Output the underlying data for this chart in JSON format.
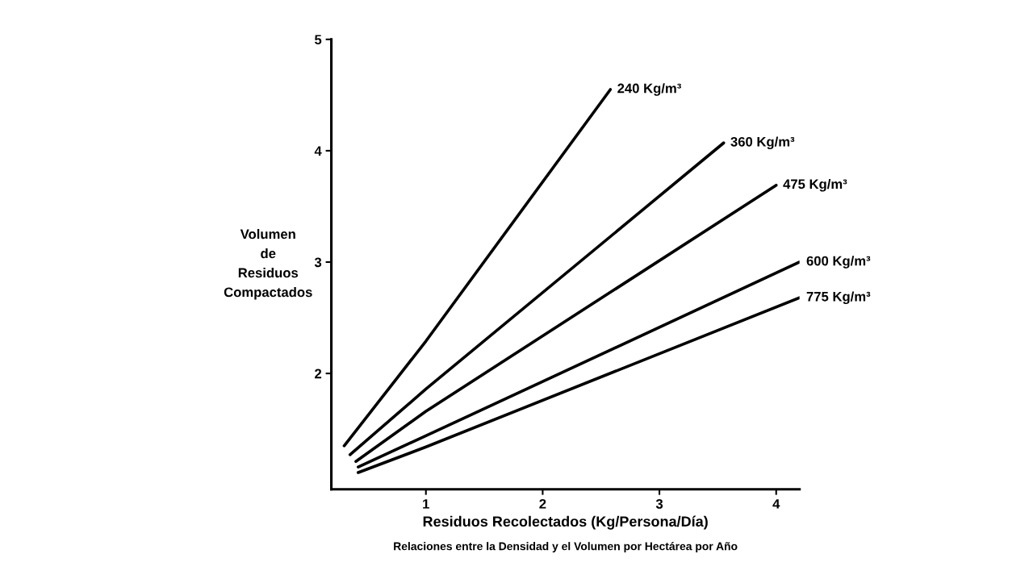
{
  "chart_data": {
    "type": "line",
    "xlabel": "Residuos Recolectados (Kg/Persona/Día)",
    "ylabel": "Volumen\nde\nResiduos\nCompactados",
    "xlim": [
      0.19,
      4.2
    ],
    "ylim": [
      0.96,
      5
    ],
    "xticks": [
      1,
      2,
      3,
      4
    ],
    "yticks": [
      2,
      3,
      4,
      5
    ],
    "grid": false,
    "line_style": "solid",
    "series": [
      {
        "name": "240 Kg/m³",
        "color": "#000000",
        "x": [
          0.3,
          1,
          2.58
        ],
        "values": [
          1.35,
          2.29,
          4.55
        ]
      },
      {
        "name": "360 Kg/m³",
        "color": "#000000",
        "x": [
          0.35,
          1,
          3.55
        ],
        "values": [
          1.27,
          1.86,
          4.07
        ]
      },
      {
        "name": "475 Kg/m³",
        "color": "#000000",
        "x": [
          0.4,
          1,
          4.0
        ],
        "values": [
          1.21,
          1.66,
          3.69
        ]
      },
      {
        "name": "600 Kg/m³",
        "color": "#000000",
        "x": [
          0.42,
          1,
          4.2
        ],
        "values": [
          1.16,
          1.44,
          3.0
        ]
      },
      {
        "name": "775 Kg/m³",
        "color": "#000000",
        "x": [
          0.42,
          1,
          4.2
        ],
        "values": [
          1.11,
          1.34,
          2.68
        ]
      }
    ],
    "annotations": [
      "Relaciones entre la Densidad y el Volumen por Hectárea por Año"
    ]
  }
}
